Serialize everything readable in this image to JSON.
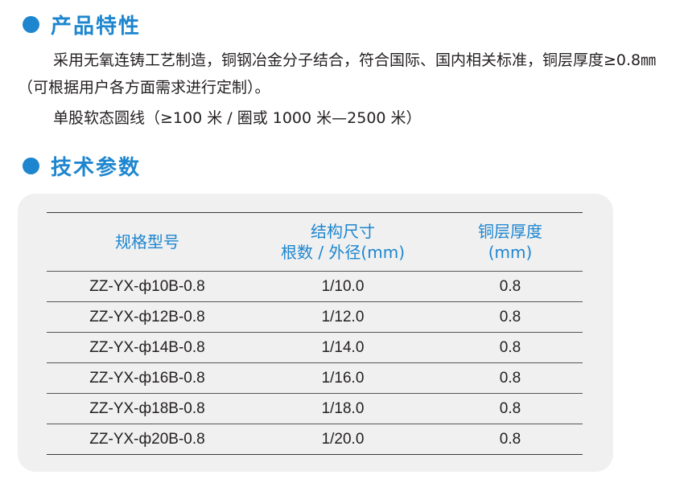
{
  "section1": {
    "title": "产品特性",
    "para1": "采用无氧连铸工艺制造，铜钢冶金分子结合，符合国际、国内相关标准，铜层厚度≥0.8㎜（可根据用户各方面需求进行定制）。",
    "para2": "单股软态圆线（≥100 米 / 圈或 1000 米—2500 米）"
  },
  "section2": {
    "title": "技术参数"
  },
  "table": {
    "headers": {
      "spec": "规格型号",
      "structure_line1": "结构尺寸",
      "structure_line2": "根数 / 外径(mm)",
      "thickness_line1": "铜层厚度",
      "thickness_line2": "(mm)"
    },
    "rows": [
      {
        "spec": "ZZ-YX-ф10B-0.8",
        "structure": "1/10.0",
        "thickness": "0.8"
      },
      {
        "spec": "ZZ-YX-ф12B-0.8",
        "structure": "1/12.0",
        "thickness": "0.8"
      },
      {
        "spec": "ZZ-YX-ф14B-0.8",
        "structure": "1/14.0",
        "thickness": "0.8"
      },
      {
        "spec": "ZZ-YX-ф16B-0.8",
        "structure": "1/16.0",
        "thickness": "0.8"
      },
      {
        "spec": "ZZ-YX-ф18B-0.8",
        "structure": "1/18.0",
        "thickness": "0.8"
      },
      {
        "spec": "ZZ-YX-ф20B-0.8",
        "structure": "1/20.0",
        "thickness": "0.8"
      }
    ]
  },
  "colors": {
    "accent": "#1d86cf",
    "text": "#231f20",
    "card": "#f0f0f1"
  }
}
